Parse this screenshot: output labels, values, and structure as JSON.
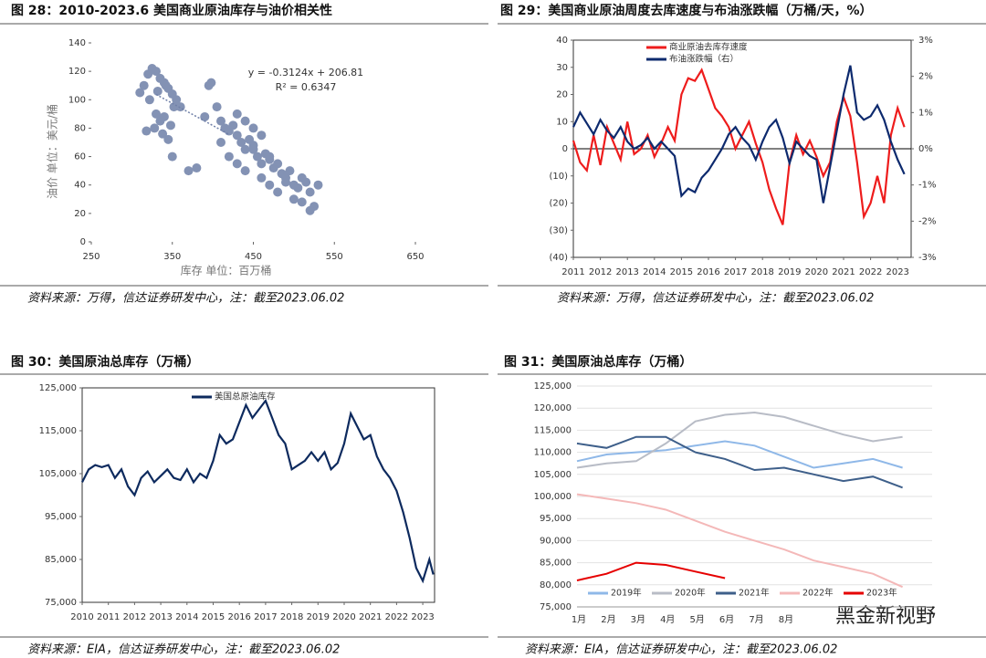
{
  "chart_data": [
    {
      "type": "scatter",
      "title": "图 28：2010-2023.6 美国商业原油库存与油价相关性",
      "source": "资料来源：万得，信达证券研发中心，注：截至2023.06.02",
      "xlabel": "库存 单位：百万桶",
      "ylabel": "油价 单位：美元/桶",
      "color": "#8392b4",
      "xlim": [
        250,
        650
      ],
      "xticks": [
        250,
        350,
        450,
        550,
        650
      ],
      "ylim": [
        0,
        140
      ],
      "yticks": [
        0,
        20,
        40,
        60,
        80,
        100,
        120,
        140
      ],
      "annotations": [
        "y = -0.3124x + 206.81",
        "R² = 0.6347"
      ],
      "trendline": {
        "x": [
          330,
          420
        ],
        "y": [
          103.7,
          75.6
        ]
      },
      "x": [
        310,
        315,
        320,
        325,
        330,
        335,
        340,
        345,
        350,
        355,
        360,
        318,
        328,
        338,
        348,
        322,
        332,
        342,
        352,
        340,
        345,
        350,
        330,
        335,
        370,
        380,
        390,
        395,
        398,
        405,
        410,
        415,
        420,
        425,
        430,
        435,
        440,
        445,
        450,
        455,
        460,
        465,
        470,
        475,
        480,
        485,
        490,
        495,
        500,
        505,
        510,
        515,
        520,
        525,
        530,
        410,
        420,
        430,
        440,
        450,
        460,
        470,
        480,
        490,
        500,
        510,
        520,
        430,
        440,
        450,
        460,
        470
      ],
      "values": [
        105,
        110,
        118,
        122,
        120,
        115,
        112,
        108,
        104,
        100,
        95,
        78,
        80,
        76,
        82,
        100,
        106,
        110,
        95,
        88,
        72,
        60,
        90,
        85,
        50,
        52,
        88,
        110,
        112,
        95,
        85,
        80,
        78,
        82,
        75,
        70,
        65,
        72,
        68,
        60,
        55,
        62,
        58,
        52,
        55,
        48,
        45,
        50,
        40,
        38,
        45,
        42,
        35,
        25,
        40,
        70,
        60,
        55,
        50,
        65,
        45,
        40,
        35,
        42,
        30,
        28,
        22,
        90,
        85,
        80,
        75,
        60
      ]
    },
    {
      "type": "line",
      "title": "图 29：美国商业原油周度去库速度与布油涨跌幅（万桶/天，%）",
      "source": "资料来源：万得，信达证券研发中心，注：截至2023.06.02",
      "legend": "upper left",
      "frame": true,
      "zero_line": true,
      "xlim": [
        2011,
        2023.5
      ],
      "xticks": [
        2011,
        2012,
        2013,
        2014,
        2015,
        2016,
        2017,
        2018,
        2019,
        2020,
        2021,
        2022,
        2023
      ],
      "ylim": [
        -40,
        40
      ],
      "yticks": [
        {
          "value": -40,
          "label": "(40)"
        },
        {
          "value": -30,
          "label": "(30)"
        },
        {
          "value": -20,
          "label": "(20)"
        },
        {
          "value": -10,
          "label": "(10)"
        },
        0,
        10,
        20,
        30,
        40
      ],
      "y2lim": [
        -3,
        3
      ],
      "y2ticks": [
        {
          "value": -3,
          "label": "-3%"
        },
        {
          "value": -2,
          "label": "-2%"
        },
        {
          "value": -1,
          "label": "-1%"
        },
        {
          "value": 0,
          "label": "0%"
        },
        {
          "value": 1,
          "label": "1%"
        },
        {
          "value": 2,
          "label": "2%"
        },
        {
          "value": 3,
          "label": "3%"
        }
      ],
      "x": [
        2011,
        2011.25,
        2011.5,
        2011.75,
        2012,
        2012.25,
        2012.5,
        2012.75,
        2013,
        2013.25,
        2013.5,
        2013.75,
        2014,
        2014.25,
        2014.5,
        2014.75,
        2015,
        2015.25,
        2015.5,
        2015.75,
        2016,
        2016.25,
        2016.5,
        2016.75,
        2017,
        2017.25,
        2017.5,
        2017.75,
        2018,
        2018.25,
        2018.5,
        2018.75,
        2019,
        2019.25,
        2019.5,
        2019.75,
        2020,
        2020.25,
        2020.5,
        2020.75,
        2021,
        2021.25,
        2021.5,
        2021.75,
        2022,
        2022.25,
        2022.5,
        2022.75,
        2023,
        2023.25
      ],
      "series": [
        {
          "name": "商业原油去库存速度",
          "color": "#ee1c1c",
          "values": [
            3,
            -5,
            -8,
            5,
            -6,
            8,
            2,
            -4,
            10,
            -2,
            0,
            5,
            -3,
            2,
            8,
            3,
            20,
            26,
            25,
            29,
            22,
            15,
            12,
            8,
            0,
            5,
            10,
            2,
            -5,
            -15,
            -22,
            -28,
            -5,
            5,
            -2,
            3,
            -3,
            -10,
            -5,
            10,
            19,
            12,
            -5,
            -25,
            -20,
            -10,
            -20,
            5,
            15,
            8
          ]
        },
        {
          "name": "布油涨跌幅（右）",
          "color": "#0d2a6e",
          "axis": "y2",
          "values": [
            0.6,
            1,
            0.7,
            0.4,
            0.8,
            0.5,
            0.3,
            0.6,
            0.2,
            0,
            0.1,
            0.3,
            0,
            0.2,
            0,
            -0.2,
            -1.3,
            -1.1,
            -1.2,
            -0.8,
            -0.6,
            -0.3,
            0,
            0.4,
            0.6,
            0.3,
            0.1,
            -0.3,
            0.2,
            0.6,
            0.8,
            0.3,
            -0.4,
            0.2,
            0,
            -0.2,
            -0.3,
            -1.5,
            -0.5,
            0.5,
            1.5,
            2.3,
            1,
            0.8,
            0.9,
            1.2,
            0.8,
            0.2,
            -0.3,
            -0.7
          ]
        }
      ]
    },
    {
      "type": "line",
      "title": "图 30：美国原油总库存（万桶）",
      "source": "资料来源：EIA，信达证券研发中心，注：截至2023.06.02",
      "legend": "upper center",
      "frame": true,
      "xlim": [
        2010,
        2023.45
      ],
      "xticks": [
        2010,
        2011,
        2012,
        2013,
        2014,
        2015,
        2016,
        2017,
        2018,
        2019,
        2020,
        2021,
        2022,
        2023
      ],
      "ylim": [
        75000,
        125000
      ],
      "yticks": [
        {
          "value": 75000,
          "label": "75,000"
        },
        {
          "value": 85000,
          "label": "85,000"
        },
        {
          "value": 95000,
          "label": "95,000"
        },
        {
          "value": 105000,
          "label": "105,000"
        },
        {
          "value": 115000,
          "label": "115,000"
        },
        {
          "value": 125000,
          "label": "125,000"
        }
      ],
      "x": [
        2010,
        2010.25,
        2010.5,
        2010.75,
        2011,
        2011.25,
        2011.5,
        2011.75,
        2012,
        2012.25,
        2012.5,
        2012.75,
        2013,
        2013.25,
        2013.5,
        2013.75,
        2014,
        2014.25,
        2014.5,
        2014.75,
        2015,
        2015.25,
        2015.5,
        2015.75,
        2016,
        2016.25,
        2016.5,
        2016.75,
        2017,
        2017.25,
        2017.5,
        2017.75,
        2018,
        2018.25,
        2018.5,
        2018.75,
        2019,
        2019.25,
        2019.5,
        2019.75,
        2020,
        2020.25,
        2020.5,
        2020.75,
        2021,
        2021.25,
        2021.5,
        2021.75,
        2022,
        2022.25,
        2022.5,
        2022.75,
        2023,
        2023.25,
        2023.4
      ],
      "series": [
        {
          "name": "美国总原油库存",
          "color": "#0d2a5e",
          "values": [
            103000,
            106000,
            107000,
            106500,
            107000,
            104000,
            106000,
            102000,
            100000,
            104000,
            105500,
            103000,
            104500,
            106000,
            104000,
            103500,
            106000,
            103000,
            105000,
            104000,
            108000,
            114000,
            112000,
            113000,
            117000,
            121000,
            118000,
            120000,
            122000,
            118000,
            114000,
            112000,
            106000,
            107000,
            108000,
            110000,
            108000,
            110000,
            106000,
            107500,
            112000,
            119000,
            116000,
            113000,
            114000,
            109000,
            106000,
            104000,
            101000,
            96000,
            90000,
            83000,
            80000,
            85000,
            81500
          ]
        }
      ]
    },
    {
      "type": "line",
      "title": "图 31：美国原油总库存（万桶）",
      "source": "资料来源：EIA，信达证券研发中心，注：截至2023.06.02",
      "legend": "lower left",
      "grid": true,
      "categories": [
        "1月",
        "2月",
        "3月",
        "4月",
        "5月",
        "6月",
        "7月",
        "8月",
        null,
        null,
        null,
        null
      ],
      "ylim": [
        75000,
        125000
      ],
      "yticks": [
        {
          "value": 75000,
          "label": "75,000"
        },
        {
          "value": 80000,
          "label": "80,000"
        },
        {
          "value": 85000,
          "label": "85,000"
        },
        {
          "value": 90000,
          "label": "90,000"
        },
        {
          "value": 95000,
          "label": "95,000"
        },
        {
          "value": 100000,
          "label": "100,000"
        },
        {
          "value": 105000,
          "label": "105,000"
        },
        {
          "value": 110000,
          "label": "110,000"
        },
        {
          "value": 115000,
          "label": "115,000"
        },
        {
          "value": 120000,
          "label": "120,000"
        },
        {
          "value": 125000,
          "label": "125,000"
        }
      ],
      "series": [
        {
          "name": "2019年",
          "color": "#8fb8e8",
          "values": [
            108000,
            109500,
            110000,
            110500,
            111500,
            112500,
            111500,
            109000,
            106500,
            107500,
            108500,
            106500
          ]
        },
        {
          "name": "2020年",
          "color": "#b8bcc6",
          "values": [
            106500,
            107500,
            108000,
            112000,
            117000,
            118500,
            119000,
            118000,
            116000,
            114000,
            112500,
            113500
          ]
        },
        {
          "name": "2021年",
          "color": "#3e5f8a",
          "values": [
            112000,
            111000,
            113500,
            113500,
            110000,
            108500,
            106000,
            106500,
            105000,
            103500,
            104500,
            102000
          ]
        },
        {
          "name": "2022年",
          "color": "#f4b8b8",
          "values": [
            100500,
            99500,
            98500,
            97000,
            94500,
            92000,
            90000,
            88000,
            85500,
            84000,
            82500,
            79500
          ]
        },
        {
          "name": "2023年",
          "color": "#e60000",
          "values": [
            81000,
            82500,
            85000,
            84500,
            83000,
            81500,
            null,
            null,
            null,
            null,
            null,
            null
          ]
        }
      ]
    }
  ],
  "watermark": "黑金新视野"
}
